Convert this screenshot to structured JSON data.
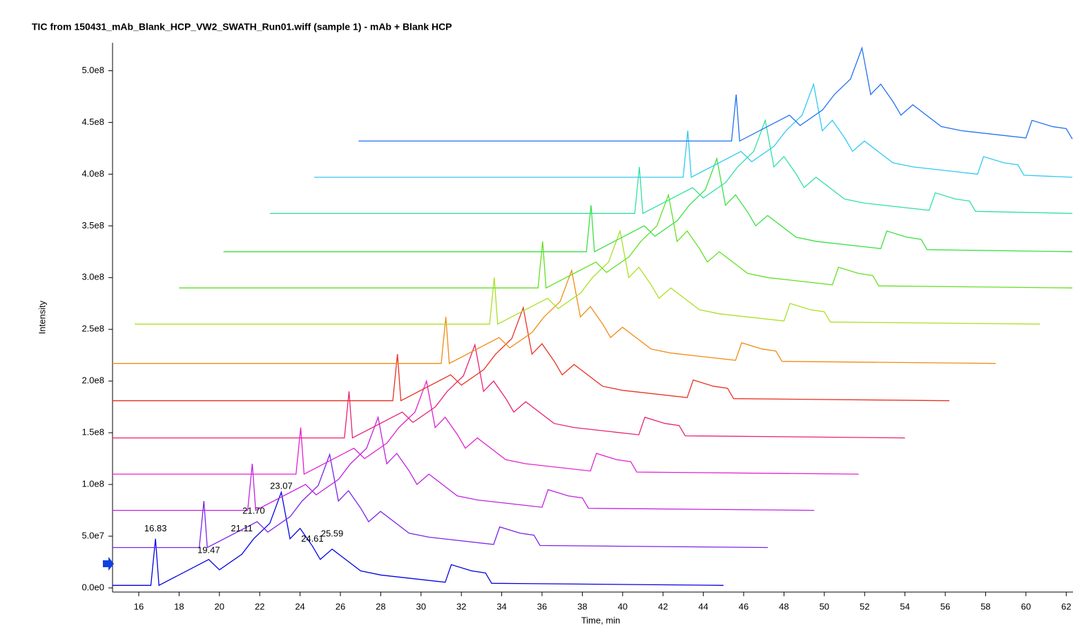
{
  "chart_data": {
    "type": "line",
    "title": "TIC from 150431_mAb_Blank_HCP_VW2_SWATH_Run01.wiff (sample 1) - mAb + Blank HCP",
    "x_label": "Time, min",
    "y_label": "Intensity",
    "xlim": [
      14.7,
      62.3
    ],
    "ylim": [
      -4000000.0,
      527000000.0
    ],
    "xticks": [
      16,
      18,
      20,
      22,
      24,
      26,
      28,
      30,
      32,
      34,
      36,
      38,
      40,
      42,
      44,
      46,
      48,
      50,
      52,
      54,
      56,
      58,
      60,
      62
    ],
    "yticks": [
      {
        "value": 0,
        "label": "0.0e0"
      },
      {
        "value": 50000000.0,
        "label": "5.0e7"
      },
      {
        "value": 100000000.0,
        "label": "1.0e8"
      },
      {
        "value": 150000000.0,
        "label": "1.5e8"
      },
      {
        "value": 200000000.0,
        "label": "2.0e8"
      },
      {
        "value": 250000000.0,
        "label": "2.5e8"
      },
      {
        "value": 300000000.0,
        "label": "3.0e8"
      },
      {
        "value": 350000000.0,
        "label": "3.5e8"
      },
      {
        "value": 400000000.0,
        "label": "4.0e8"
      },
      {
        "value": 450000000.0,
        "label": "4.5e8"
      },
      {
        "value": 500000000.0,
        "label": "5.0e8"
      }
    ],
    "annotations": [
      {
        "x": 16.83,
        "y": 57000000.0,
        "label": "16.83"
      },
      {
        "x": 19.47,
        "y": 36000000.0,
        "label": "19.47"
      },
      {
        "x": 21.11,
        "y": 57000000.0,
        "label": "21.11"
      },
      {
        "x": 21.7,
        "y": 74000000.0,
        "label": "21.70"
      },
      {
        "x": 23.07,
        "y": 98000000.0,
        "label": "23.07"
      },
      {
        "x": 24.61,
        "y": 47000000.0,
        "label": "24.61"
      },
      {
        "x": 25.59,
        "y": 52000000.0,
        "label": "25.59"
      }
    ],
    "series": [
      {
        "color": "#0000e0",
        "x": [
          14.7,
          16.6,
          16.83,
          17.0,
          19.47,
          20.0,
          21.11,
          21.7,
          22.5,
          23.07,
          23.5,
          24.0,
          24.61,
          25.0,
          25.59,
          27.0,
          28.0,
          31.2,
          31.5,
          32.5,
          33.2,
          33.5,
          45
        ],
        "values": [
          2500000.0,
          2500000.0,
          47500000.0,
          2500000.0,
          27500000.0,
          17500000.0,
          32500000.0,
          47500000.0,
          62500000.0,
          92500000.0,
          47500000.0,
          57500000.0,
          40500000.0,
          27500000.0,
          37500000.0,
          16500000.0,
          12500000.0,
          5500000.0,
          22500000.0,
          16500000.0,
          14500000.0,
          4500000.0,
          2500000.0
        ]
      },
      {
        "color": "#7a22e8",
        "x": [
          14.7,
          19.0,
          19.23,
          19.4,
          21.87,
          22.4,
          23.51,
          24.1,
          24.9,
          25.47,
          25.9,
          26.4,
          27.01,
          27.4,
          27.99,
          29.4,
          30.4,
          33.6,
          33.9,
          34.9,
          35.6,
          35.9,
          47.2
        ],
        "values": [
          39000000.0,
          39000000.0,
          84000000.0,
          39000000.0,
          64000000.0,
          54000000.0,
          69000000.0,
          84000000.0,
          99000000.0,
          129000000.0,
          84000000.0,
          94000000.0,
          77000000.0,
          64000000.0,
          74000000.0,
          53000000.0,
          49000000.0,
          42000000.0,
          59000000.0,
          53000000.0,
          51000000.0,
          41000000.0,
          39000000.0
        ]
      },
      {
        "color": "#c020e0",
        "x": [
          14.7,
          21.4,
          21.63,
          21.8,
          24.27,
          24.8,
          25.91,
          26.5,
          27.3,
          27.87,
          28.3,
          28.8,
          29.41,
          29.8,
          30.39,
          31.8,
          32.8,
          36.0,
          36.3,
          37.3,
          38.0,
          38.3,
          49.5
        ],
        "values": [
          75000000.0,
          75000000.0,
          120000000.0,
          75000000.0,
          100000000.0,
          90000000.0,
          105000000.0,
          120000000.0,
          135000000.0,
          165000000.0,
          120000000.0,
          130000000.0,
          113000000.0,
          100000000.0,
          110000000.0,
          89000000.0,
          85000000.0,
          78000000.0,
          95000000.0,
          89000000.0,
          87000000.0,
          77000000.0,
          75000000.0
        ]
      },
      {
        "color": "#e020d0",
        "x": [
          14.7,
          23.8,
          24.03,
          24.2,
          26.67,
          27.2,
          28.31,
          28.9,
          29.7,
          30.27,
          30.7,
          31.2,
          31.81,
          32.2,
          32.79,
          34.2,
          35.2,
          38.4,
          38.7,
          39.7,
          40.4,
          40.7,
          51.7
        ],
        "values": [
          110000000.0,
          110000000.0,
          155000000.0,
          110000000.0,
          135000000.0,
          125000000.0,
          140000000.0,
          155000000.0,
          170000000.0,
          200000000.0,
          155000000.0,
          165000000.0,
          148000000.0,
          135000000.0,
          145000000.0,
          124000000.0,
          120000000.0,
          113000000.0,
          130000000.0,
          124000000.0,
          122000000.0,
          112000000.0,
          110000000.0
        ]
      },
      {
        "color": "#e82070",
        "x": [
          14.7,
          26.2,
          26.43,
          26.6,
          29.07,
          29.6,
          30.71,
          31.3,
          32.1,
          32.67,
          33.1,
          33.6,
          34.21,
          34.6,
          35.19,
          36.6,
          37.6,
          40.8,
          41.1,
          42.1,
          42.8,
          43.1,
          54
        ],
        "values": [
          145000000.0,
          145000000.0,
          190000000.0,
          145000000.0,
          170000000.0,
          160000000.0,
          175000000.0,
          190000000.0,
          205000000.0,
          235000000.0,
          190000000.0,
          200000000.0,
          183000000.0,
          170000000.0,
          180000000.0,
          159000000.0,
          155000000.0,
          148000000.0,
          165000000.0,
          159000000.0,
          157000000.0,
          147000000.0,
          145000000.0
        ]
      },
      {
        "color": "#e83020",
        "x": [
          14.7,
          28.6,
          28.83,
          29.0,
          31.47,
          32.0,
          33.11,
          33.7,
          34.5,
          35.07,
          35.5,
          36.0,
          36.61,
          37.0,
          37.59,
          39.0,
          40.0,
          43.2,
          43.5,
          44.5,
          45.2,
          45.5,
          56.2
        ],
        "values": [
          181000000.0,
          181000000.0,
          226000000.0,
          181000000.0,
          206000000.0,
          196000000.0,
          211000000.0,
          226000000.0,
          241000000.0,
          271000000.0,
          226000000.0,
          236000000.0,
          219000000.0,
          206000000.0,
          216000000.0,
          195000000.0,
          191000000.0,
          184000000.0,
          201000000.0,
          195000000.0,
          193000000.0,
          183000000.0,
          181000000.0
        ]
      },
      {
        "color": "#f08a10",
        "x": [
          14.7,
          31.0,
          31.23,
          31.4,
          33.87,
          34.4,
          35.51,
          36.1,
          36.9,
          37.47,
          37.9,
          38.4,
          39.01,
          39.4,
          39.99,
          41.4,
          42.4,
          45.6,
          45.9,
          46.9,
          47.6,
          47.9,
          58.5
        ],
        "values": [
          217000000.0,
          217000000.0,
          262000000.0,
          217000000.0,
          242000000.0,
          232000000.0,
          247000000.0,
          262000000.0,
          277000000.0,
          307000000.0,
          262000000.0,
          272000000.0,
          255000000.0,
          242000000.0,
          252000000.0,
          231000000.0,
          227000000.0,
          220000000.0,
          237000000.0,
          231000000.0,
          229000000.0,
          219000000.0,
          217000000.0
        ]
      },
      {
        "color": "#a8e020",
        "x": [
          15.8,
          33.4,
          33.63,
          33.8,
          36.27,
          36.8,
          37.91,
          38.5,
          39.3,
          39.87,
          40.3,
          40.8,
          41.41,
          41.8,
          42.39,
          43.8,
          44.8,
          48.0,
          48.3,
          49.3,
          50.0,
          50.3,
          60.7
        ],
        "values": [
          255000000.0,
          255000000.0,
          300000000.0,
          255000000.0,
          280000000.0,
          270000000.0,
          285000000.0,
          300000000.0,
          315000000.0,
          345000000.0,
          300000000.0,
          310000000.0,
          293000000.0,
          280000000.0,
          290000000.0,
          269000000.0,
          265000000.0,
          258000000.0,
          275000000.0,
          269000000.0,
          267000000.0,
          257000000.0,
          255000000.0
        ]
      },
      {
        "color": "#60e020",
        "x": [
          18.0,
          35.8,
          36.03,
          36.2,
          38.67,
          39.2,
          40.31,
          40.9,
          41.7,
          42.27,
          42.7,
          43.2,
          43.81,
          44.2,
          44.79,
          46.2,
          47.2,
          50.4,
          50.7,
          51.7,
          52.4,
          52.7,
          62.3
        ],
        "values": [
          290000000.0,
          290000000.0,
          335000000.0,
          290000000.0,
          315000000.0,
          305000000.0,
          320000000.0,
          335000000.0,
          350000000.0,
          380000000.0,
          335000000.0,
          345000000.0,
          328000000.0,
          315000000.0,
          325000000.0,
          304000000.0,
          300000000.0,
          293000000.0,
          310000000.0,
          304000000.0,
          302000000.0,
          292000000.0,
          290000000.0
        ]
      },
      {
        "color": "#38e040",
        "x": [
          20.2,
          38.2,
          38.43,
          38.6,
          41.07,
          41.6,
          42.71,
          43.3,
          44.1,
          44.67,
          45.1,
          45.6,
          46.21,
          46.6,
          47.19,
          48.6,
          49.6,
          52.8,
          53.1,
          54.1,
          54.8,
          55.1,
          62.3
        ],
        "values": [
          325000000.0,
          325000000.0,
          370000000.0,
          325000000.0,
          350000000.0,
          340000000.0,
          355000000.0,
          370000000.0,
          385000000.0,
          415000000.0,
          370000000.0,
          380000000.0,
          363000000.0,
          350000000.0,
          360000000.0,
          339000000.0,
          335000000.0,
          328000000.0,
          345000000.0,
          339000000.0,
          337000000.0,
          327000000.0,
          325000000.0
        ]
      },
      {
        "color": "#30e0a0",
        "x": [
          22.5,
          40.6,
          40.83,
          41.0,
          43.47,
          44.0,
          45.11,
          45.7,
          46.5,
          47.07,
          47.5,
          48.0,
          48.61,
          49.0,
          49.59,
          51.0,
          52.0,
          55.2,
          55.5,
          56.5,
          57.2,
          57.5,
          62.3
        ],
        "values": [
          362000000.0,
          362000000.0,
          407000000.0,
          362000000.0,
          387000000.0,
          377000000.0,
          392000000.0,
          407000000.0,
          422000000.0,
          452000000.0,
          407000000.0,
          417000000.0,
          400000000.0,
          387000000.0,
          397000000.0,
          376000000.0,
          372000000.0,
          365000000.0,
          382000000.0,
          376000000.0,
          374000000.0,
          364000000.0,
          362000000.0
        ]
      },
      {
        "color": "#30c8f0",
        "x": [
          24.7,
          43.0,
          43.23,
          43.4,
          45.87,
          46.4,
          47.51,
          48.1,
          48.9,
          49.47,
          49.9,
          50.4,
          51.01,
          51.4,
          51.99,
          53.4,
          54.4,
          57.6,
          57.9,
          58.9,
          59.6,
          59.9,
          62.3
        ],
        "values": [
          397000000.0,
          397000000.0,
          442000000.0,
          397000000.0,
          422000000.0,
          412000000.0,
          427000000.0,
          442000000.0,
          457000000.0,
          487000000.0,
          442000000.0,
          452000000.0,
          435000000.0,
          422000000.0,
          432000000.0,
          411000000.0,
          407000000.0,
          400000000.0,
          417000000.0,
          411000000.0,
          409000000.0,
          399000000.0,
          397000000.0
        ]
      },
      {
        "color": "#2070f0",
        "x": [
          26.9,
          45.4,
          45.63,
          45.8,
          48.27,
          48.8,
          49.91,
          50.5,
          51.3,
          51.87,
          52.3,
          52.8,
          53.41,
          53.8,
          54.39,
          55.8,
          56.8,
          60.0,
          60.3,
          61.3,
          62.0,
          62.3
        ],
        "values": [
          432000000.0,
          432000000.0,
          477000000.0,
          432000000.0,
          457000000.0,
          447000000.0,
          462000000.0,
          477000000.0,
          492000000.0,
          522000000.0,
          477000000.0,
          487000000.0,
          470000000.0,
          457000000.0,
          467000000.0,
          446000000.0,
          442000000.0,
          435000000.0,
          452000000.0,
          446000000.0,
          444000000.0,
          434000000.0
        ]
      }
    ]
  }
}
